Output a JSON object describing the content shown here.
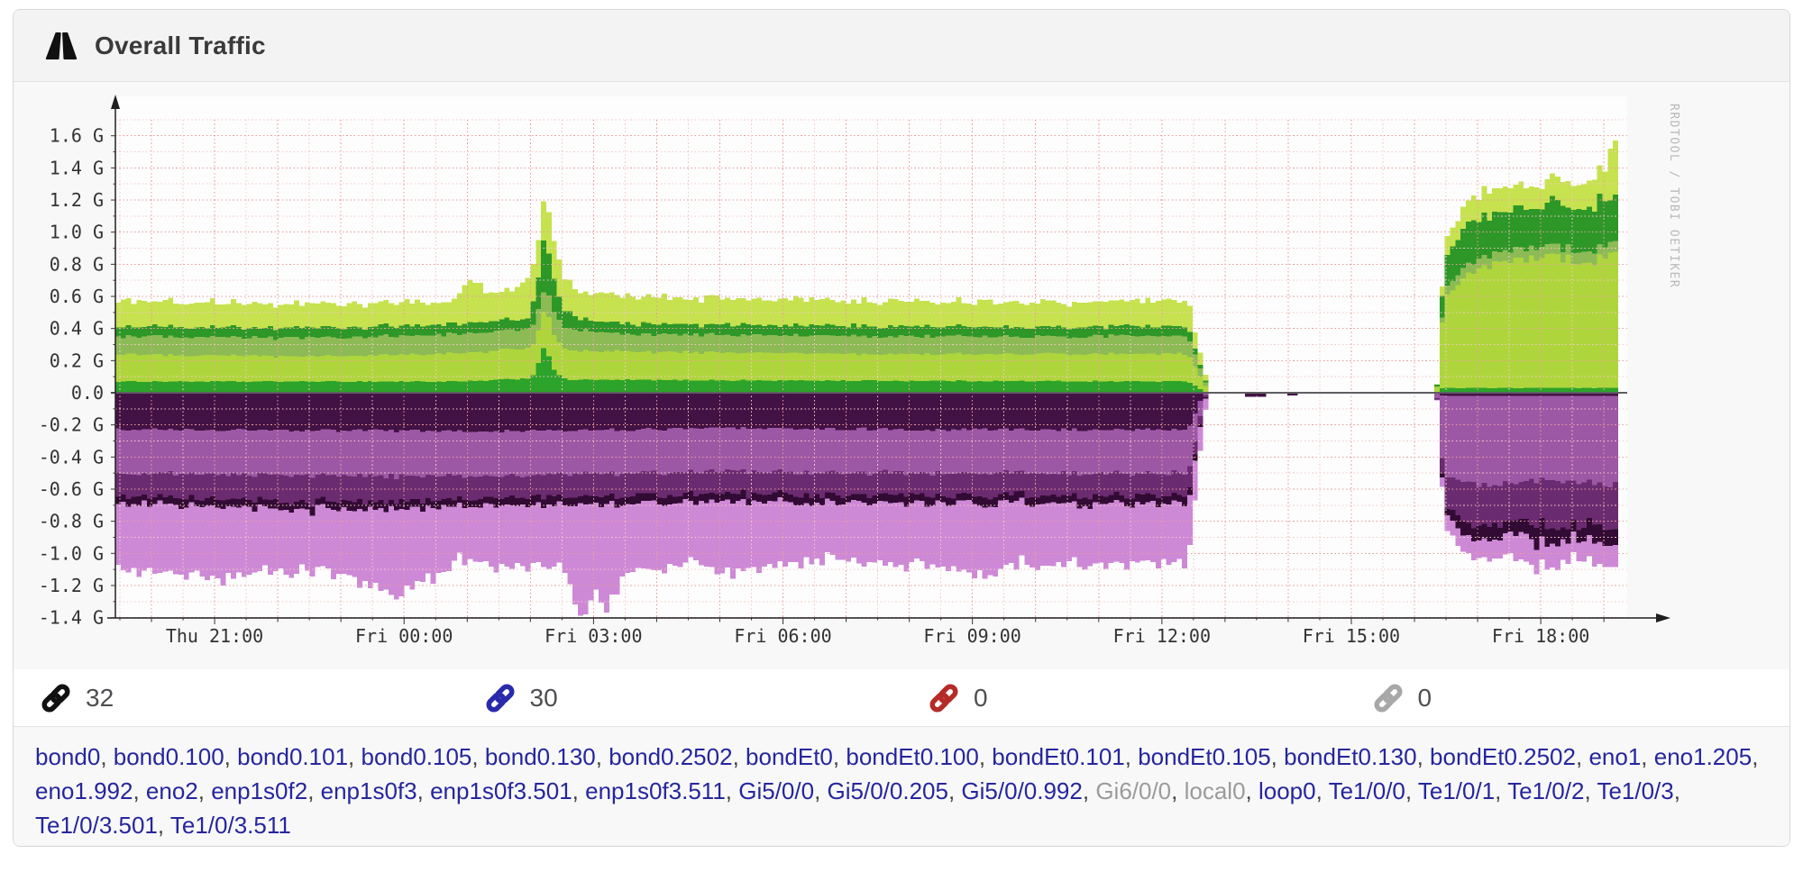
{
  "header": {
    "title": "Overall Traffic",
    "icon": "road-icon"
  },
  "chart_data": {
    "type": "area",
    "title": "Overall Traffic",
    "watermark": "RRDTOOL / TOBI OETIKER",
    "grid": "on",
    "ylim": [
      -1.4,
      1.7
    ],
    "unit": "G",
    "y_ticks": [
      {
        "v": 1.6,
        "label": "1.6 G"
      },
      {
        "v": 1.4,
        "label": "1.4 G"
      },
      {
        "v": 1.2,
        "label": "1.2 G"
      },
      {
        "v": 1.0,
        "label": "1.0 G"
      },
      {
        "v": 0.8,
        "label": "0.8 G"
      },
      {
        "v": 0.6,
        "label": "0.6 G"
      },
      {
        "v": 0.4,
        "label": "0.4 G"
      },
      {
        "v": 0.2,
        "label": "0.2 G"
      },
      {
        "v": 0.0,
        "label": "0.0"
      },
      {
        "v": -0.2,
        "label": "-0.2 G"
      },
      {
        "v": -0.4,
        "label": "-0.4 G"
      },
      {
        "v": -0.6,
        "label": "-0.6 G"
      },
      {
        "v": -0.8,
        "label": "-0.8 G"
      },
      {
        "v": -1.0,
        "label": "-1.0 G"
      },
      {
        "v": -1.2,
        "label": "-1.2 G"
      },
      {
        "v": -1.4,
        "label": "-1.4 G"
      }
    ],
    "x_ticks": [
      {
        "t": 1.571,
        "label": "Thu 21:00"
      },
      {
        "t": 4.571,
        "label": "Fri 00:00"
      },
      {
        "t": 7.571,
        "label": "Fri 03:00"
      },
      {
        "t": 10.571,
        "label": "Fri 06:00"
      },
      {
        "t": 13.571,
        "label": "Fri 09:00"
      },
      {
        "t": 16.571,
        "label": "Fri 12:00"
      },
      {
        "t": 19.571,
        "label": "Fri 15:00"
      },
      {
        "t": 22.571,
        "label": "Fri 18:00"
      }
    ],
    "t_range": [
      0,
      23.8
    ],
    "colors": {
      "grid_minor": "#f6c8c8",
      "grid_major": "#ea9c9c",
      "zero_line": "#5e5e62",
      "axis": "#1f1f1f",
      "tick_label": "#333333",
      "watermark": "#b9b9b9",
      "plot_bg": "#fdfdfd"
    },
    "series": [
      {
        "name": "in-stack-1",
        "dir": "in",
        "color": "#2ca32a",
        "noise": 0.05,
        "keypoints": [
          [
            0,
            0.07
          ],
          [
            5.5,
            0.07
          ],
          [
            6.55,
            0.09
          ],
          [
            6.75,
            0.28
          ],
          [
            6.95,
            0.11
          ],
          [
            7.15,
            0.08
          ],
          [
            16.95,
            0.07
          ],
          [
            17.25,
            0
          ],
          [
            20.88,
            0
          ],
          [
            20.98,
            0.03
          ],
          [
            23.8,
            0.03
          ]
        ]
      },
      {
        "name": "in-stack-2",
        "dir": "in",
        "color": "#aed63c",
        "noise": 0.04,
        "keypoints": [
          [
            0,
            0.17
          ],
          [
            3,
            0.155
          ],
          [
            5,
            0.17
          ],
          [
            6.6,
            0.19
          ],
          [
            6.8,
            0.24
          ],
          [
            7.1,
            0.18
          ],
          [
            12,
            0.165
          ],
          [
            16.95,
            0.17
          ],
          [
            17.3,
            0
          ],
          [
            20.88,
            0
          ],
          [
            21.0,
            0.55
          ],
          [
            21.35,
            0.7
          ],
          [
            21.9,
            0.78
          ],
          [
            22.6,
            0.82
          ],
          [
            23.3,
            0.79
          ],
          [
            23.8,
            0.83
          ]
        ]
      },
      {
        "name": "in-stack-3",
        "dir": "in",
        "color": "#8cbb56",
        "noise": 0.06,
        "keypoints": [
          [
            0,
            0.11
          ],
          [
            6.6,
            0.12
          ],
          [
            6.85,
            0.14
          ],
          [
            8,
            0.11
          ],
          [
            16.95,
            0.11
          ],
          [
            17.3,
            0
          ],
          [
            20.88,
            0
          ],
          [
            21.05,
            0.06
          ],
          [
            23.8,
            0.07
          ]
        ]
      },
      {
        "name": "in-stack-4",
        "dir": "in",
        "color": "#2d9728",
        "noise": 0.12,
        "keypoints": [
          [
            0,
            0.06
          ],
          [
            6.5,
            0.065
          ],
          [
            6.75,
            0.3
          ],
          [
            7.05,
            0.12
          ],
          [
            7.3,
            0.065
          ],
          [
            16.95,
            0.06
          ],
          [
            17.28,
            0
          ],
          [
            20.88,
            0
          ],
          [
            21.0,
            0.17
          ],
          [
            21.5,
            0.26
          ],
          [
            22.1,
            0.23
          ],
          [
            22.7,
            0.27
          ],
          [
            23.2,
            0.24
          ],
          [
            23.55,
            0.3
          ],
          [
            23.8,
            0.27
          ]
        ]
      },
      {
        "name": "in-stack-5",
        "dir": "in",
        "color": "#c6e24f",
        "noise": 0.1,
        "keypoints": [
          [
            0,
            0.16
          ],
          [
            5.3,
            0.14
          ],
          [
            5.6,
            0.3
          ],
          [
            5.75,
            0.22
          ],
          [
            6.0,
            0.16
          ],
          [
            6.75,
            0.27
          ],
          [
            7.2,
            0.17
          ],
          [
            9.5,
            0.165
          ],
          [
            13,
            0.155
          ],
          [
            16.95,
            0.16
          ],
          [
            17.3,
            0
          ],
          [
            20.88,
            0
          ],
          [
            21.05,
            0.12
          ],
          [
            21.7,
            0.16
          ],
          [
            22.4,
            0.13
          ],
          [
            23.1,
            0.16
          ],
          [
            23.55,
            0.2
          ],
          [
            23.68,
            0.4
          ],
          [
            23.8,
            0.27
          ]
        ]
      },
      {
        "name": "out-stack-1",
        "dir": "out",
        "color": "#431245",
        "noise": 0.04,
        "keypoints": [
          [
            0,
            0.23
          ],
          [
            6,
            0.24
          ],
          [
            10,
            0.22
          ],
          [
            13,
            0.23
          ],
          [
            16.95,
            0.23
          ],
          [
            17.2,
            0
          ],
          [
            17.8,
            0
          ],
          [
            17.85,
            0.025
          ],
          [
            18.15,
            0.025
          ],
          [
            18.2,
            0
          ],
          [
            18.5,
            0
          ],
          [
            18.55,
            0.016
          ],
          [
            18.68,
            0.016
          ],
          [
            18.73,
            0
          ],
          [
            20.88,
            0
          ],
          [
            21.0,
            0.02
          ],
          [
            23.8,
            0.02
          ]
        ]
      },
      {
        "name": "out-stack-2",
        "dir": "out",
        "color": "#9d58a5",
        "noise": 0.04,
        "keypoints": [
          [
            0,
            0.27
          ],
          [
            4,
            0.285
          ],
          [
            8,
            0.27
          ],
          [
            16.95,
            0.27
          ],
          [
            17.24,
            0
          ],
          [
            20.88,
            0
          ],
          [
            21.0,
            0.5
          ],
          [
            21.6,
            0.55
          ],
          [
            22.6,
            0.53
          ],
          [
            23.8,
            0.55
          ]
        ]
      },
      {
        "name": "out-stack-3",
        "dir": "out",
        "color": "#6b2b70",
        "noise": 0.1,
        "keypoints": [
          [
            0,
            0.14
          ],
          [
            2.8,
            0.165
          ],
          [
            6,
            0.14
          ],
          [
            16.95,
            0.14
          ],
          [
            17.26,
            0
          ],
          [
            20.88,
            0
          ],
          [
            21.05,
            0.18
          ],
          [
            21.45,
            0.27
          ],
          [
            22.1,
            0.24
          ],
          [
            22.75,
            0.29
          ],
          [
            23.35,
            0.25
          ],
          [
            23.8,
            0.29
          ]
        ]
      },
      {
        "name": "out-stack-4",
        "dir": "out",
        "color": "#310b33",
        "noise": 0.25,
        "keypoints": [
          [
            0,
            0.05
          ],
          [
            16.95,
            0.05
          ],
          [
            17.27,
            0
          ],
          [
            20.88,
            0
          ],
          [
            21.05,
            0.05
          ],
          [
            21.55,
            0.1
          ],
          [
            22.05,
            0.07
          ],
          [
            22.45,
            0.12
          ],
          [
            23.05,
            0.08
          ],
          [
            23.55,
            0.12
          ],
          [
            23.8,
            0.1
          ]
        ]
      },
      {
        "name": "out-stack-5",
        "dir": "out",
        "color": "#cd89d6",
        "noise": 0.09,
        "keypoints": [
          [
            0,
            0.4
          ],
          [
            1.6,
            0.44
          ],
          [
            3.1,
            0.36
          ],
          [
            4.35,
            0.52
          ],
          [
            5.05,
            0.44
          ],
          [
            5.35,
            0.34
          ],
          [
            6.1,
            0.38
          ],
          [
            7.1,
            0.4
          ],
          [
            7.35,
            0.76
          ],
          [
            7.55,
            0.5
          ],
          [
            7.75,
            0.72
          ],
          [
            7.95,
            0.44
          ],
          [
            9.1,
            0.36
          ],
          [
            9.65,
            0.44
          ],
          [
            11,
            0.36
          ],
          [
            12.6,
            0.38
          ],
          [
            13.6,
            0.43
          ],
          [
            14.6,
            0.38
          ],
          [
            16.95,
            0.36
          ],
          [
            17.3,
            0
          ],
          [
            20.88,
            0
          ],
          [
            21.05,
            0.1
          ],
          [
            21.9,
            0.12
          ],
          [
            22.35,
            0.17
          ],
          [
            23.05,
            0.12
          ],
          [
            23.8,
            0.15
          ]
        ]
      }
    ]
  },
  "stats": [
    {
      "value": "32",
      "icon": "link-icon",
      "icon_style": "color:#111111"
    },
    {
      "value": "30",
      "icon": "link-icon",
      "icon_style": "color:#2a2aad"
    },
    {
      "value": "0",
      "icon": "link-icon",
      "icon_style": "color:#b52b27"
    },
    {
      "value": "0",
      "icon": "link-icon",
      "icon_style": "color:#a8a8a8"
    }
  ],
  "ports": {
    "items": [
      {
        "label": "bond0",
        "muted": false
      },
      {
        "label": "bond0.100",
        "muted": false
      },
      {
        "label": "bond0.101",
        "muted": false
      },
      {
        "label": "bond0.105",
        "muted": false
      },
      {
        "label": "bond0.130",
        "muted": false
      },
      {
        "label": "bond0.2502",
        "muted": false
      },
      {
        "label": "bondEt0",
        "muted": false
      },
      {
        "label": "bondEt0.100",
        "muted": false
      },
      {
        "label": "bondEt0.101",
        "muted": false
      },
      {
        "label": "bondEt0.105",
        "muted": false
      },
      {
        "label": "bondEt0.130",
        "muted": false
      },
      {
        "label": "bondEt0.2502",
        "muted": false
      },
      {
        "label": "eno1",
        "muted": false
      },
      {
        "label": "eno1.205",
        "muted": false
      },
      {
        "label": "eno1.992",
        "muted": false
      },
      {
        "label": "eno2",
        "muted": false
      },
      {
        "label": "enp1s0f2",
        "muted": false
      },
      {
        "label": "enp1s0f3",
        "muted": false
      },
      {
        "label": "enp1s0f3.501",
        "muted": false
      },
      {
        "label": "enp1s0f3.511",
        "muted": false
      },
      {
        "label": "Gi5/0/0",
        "muted": false
      },
      {
        "label": "Gi5/0/0.205",
        "muted": false
      },
      {
        "label": "Gi5/0/0.992",
        "muted": false
      },
      {
        "label": "Gi6/0/0",
        "muted": true
      },
      {
        "label": "local0",
        "muted": true
      },
      {
        "label": "loop0",
        "muted": false
      },
      {
        "label": "Te1/0/0",
        "muted": false
      },
      {
        "label": "Te1/0/1",
        "muted": false
      },
      {
        "label": "Te1/0/2",
        "muted": false
      },
      {
        "label": "Te1/0/3",
        "muted": false
      },
      {
        "label": "Te1/0/3.501",
        "muted": false
      },
      {
        "label": "Te1/0/3.511",
        "muted": false
      }
    ]
  }
}
